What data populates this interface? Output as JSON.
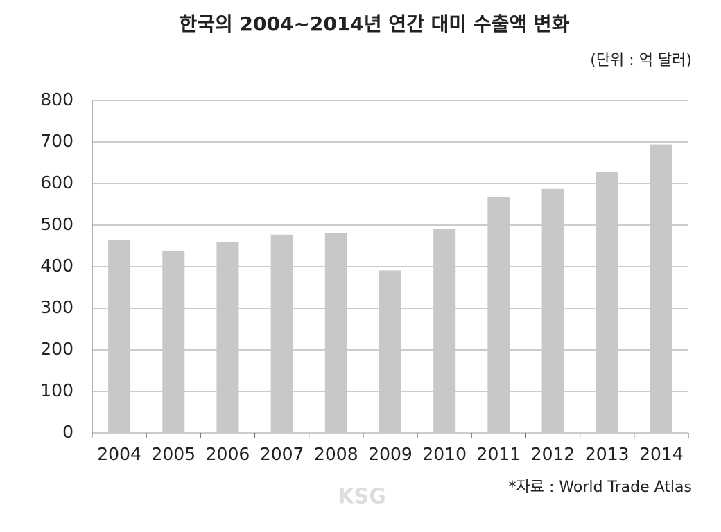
{
  "chart_data": {
    "type": "bar",
    "title": "한국의 2004~2014년 연간 대미 수출액 변화",
    "unit_note": "(단위 : 억 달러)",
    "source": "*자료 : World Trade Atlas",
    "watermark": "KSG",
    "categories": [
      "2004",
      "2005",
      "2006",
      "2007",
      "2008",
      "2009",
      "2010",
      "2011",
      "2012",
      "2013",
      "2014"
    ],
    "values": [
      465,
      437,
      459,
      477,
      480,
      391,
      490,
      568,
      587,
      627,
      694
    ],
    "color": "#c8c8c8",
    "ylim": [
      0,
      800
    ],
    "yticks": [
      0,
      100,
      200,
      300,
      400,
      500,
      600,
      700,
      800
    ],
    "grid": true
  }
}
